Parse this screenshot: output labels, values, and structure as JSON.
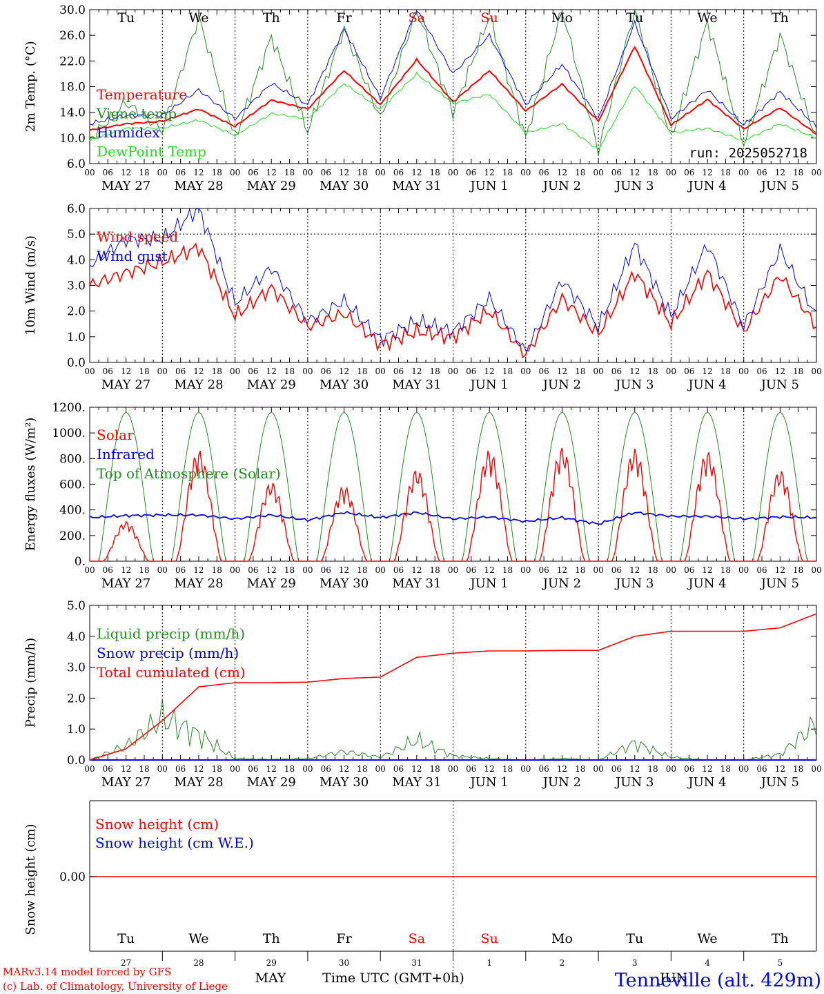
{
  "days": [
    "Tu",
    "We",
    "Th",
    "Fr",
    "Sa",
    "Su",
    "Mo",
    "Tu",
    "We",
    "Th"
  ],
  "weekend_days": [
    4,
    5
  ],
  "date_labels": [
    "MAY 27",
    "MAY 28",
    "MAY 29",
    "MAY 30",
    "MAY 31",
    "JUN  1",
    "JUN  2",
    "JUN  3",
    "JUN  4",
    "JUN  5"
  ],
  "hour_ticks": [
    "00",
    "06",
    "12",
    "18"
  ],
  "run_label": "run: 2025052718",
  "footer": {
    "model": "MARv3.14 model forced by GFS",
    "lab": "(c) Lab. of Climatology, University of Liege",
    "month": "MAY",
    "xlabel": "Time UTC (GMT+0h)",
    "station": "Tenneville (alt. 429m)",
    "month2": "JUN",
    "day_numbers": [
      "27",
      "28",
      "29",
      "30",
      "31",
      "1",
      "2",
      "3",
      "4",
      "5"
    ]
  },
  "colors": {
    "red": "#ff0000",
    "green": "#228b22",
    "blue": "#0000ff",
    "lime": "#22dd22",
    "weekend": "#ff0000"
  },
  "chart_data": [
    {
      "type": "line",
      "ylabel": "2m Temp. (°C)",
      "ylim": [
        6,
        30
      ],
      "yticks": [
        "6.0",
        "10.0",
        "14.0",
        "18.0",
        "22.0",
        "26.0",
        "30.0"
      ],
      "x_days": [
        0,
        0.5,
        1,
        1.5,
        2,
        2.5,
        3,
        3.5,
        4,
        4.5,
        5,
        5.5,
        6,
        6.5,
        7,
        7.5,
        8,
        8.5,
        9,
        9.5,
        10
      ],
      "series": [
        {
          "name": "Temperature",
          "color": "red",
          "values": [
            11.2,
            12.2,
            12.6,
            14.5,
            11.8,
            15.9,
            14.5,
            20.5,
            15.2,
            22.2,
            15.6,
            20.5,
            14.2,
            18.4,
            12.6,
            24.3,
            12.0,
            16.0,
            11.4,
            14.7,
            10.6
          ]
        },
        {
          "name": "Vigne temp",
          "color": "green",
          "values": [
            9.8,
            15.5,
            11.2,
            28.8,
            10.0,
            25.8,
            11.0,
            27.0,
            13.0,
            30.0,
            14.0,
            29.0,
            10.0,
            30.0,
            8.0,
            30.0,
            10.0,
            28.0,
            9.0,
            26.0,
            10.0
          ]
        },
        {
          "name": "Humidex",
          "color": "blue",
          "values": [
            12.2,
            13.5,
            13.5,
            17.5,
            13.0,
            18.5,
            15.2,
            27.0,
            16.2,
            30.0,
            20.0,
            26.0,
            15.2,
            21.5,
            13.0,
            28.0,
            13.0,
            17.5,
            12.0,
            17.2,
            11.8
          ]
        },
        {
          "name": "DewPoint Temp",
          "color": "lime",
          "values": [
            9.6,
            11.5,
            11.5,
            12.8,
            10.4,
            13.8,
            13.0,
            18.5,
            14.5,
            20.0,
            15.4,
            16.8,
            10.8,
            12.2,
            8.2,
            18.2,
            10.8,
            11.5,
            9.6,
            12.2,
            10.0
          ]
        }
      ]
    },
    {
      "type": "line",
      "ylabel": "10m Wind (m/s)",
      "ylim": [
        0,
        6
      ],
      "yticks": [
        "0.0",
        "1.0",
        "2.0",
        "3.0",
        "4.0",
        "5.0",
        "6.0"
      ],
      "x_days": [
        0,
        0.5,
        1,
        1.5,
        2,
        2.5,
        3,
        3.5,
        4,
        4.5,
        5,
        5.5,
        6,
        6.5,
        7,
        7.5,
        8,
        8.5,
        9,
        9.5,
        10
      ],
      "series": [
        {
          "name": "Wind speed",
          "color": "red",
          "values": [
            3.0,
            3.5,
            3.9,
            4.5,
            1.8,
            2.9,
            1.4,
            1.9,
            0.7,
            1.2,
            1.0,
            2.0,
            0.3,
            2.5,
            1.1,
            3.5,
            1.5,
            3.5,
            1.2,
            3.4,
            1.4
          ]
        },
        {
          "name": "Wind gust",
          "color": "blue",
          "values": [
            3.8,
            4.8,
            4.8,
            6.0,
            2.3,
            3.7,
            1.6,
            2.4,
            0.9,
            1.6,
            1.2,
            2.5,
            0.4,
            3.2,
            1.4,
            4.6,
            1.8,
            4.6,
            1.4,
            4.4,
            1.8
          ]
        }
      ]
    },
    {
      "type": "line",
      "ylabel": "Energy fluxes (W/m²)",
      "ylim": [
        0,
        1200
      ],
      "yticks": [
        "0.",
        "200.",
        "400.",
        "600.",
        "800.",
        "1000.",
        "1200."
      ],
      "x_days": [
        0,
        0.5,
        1,
        1.5,
        2,
        2.5,
        3,
        3.5,
        4,
        4.5,
        5,
        5.5,
        6,
        6.5,
        7,
        7.5,
        8,
        8.5,
        9,
        9.5,
        10
      ],
      "toa_peak": 1160,
      "solar_day_peaks": [
        310,
        870,
        620,
        590,
        720,
        870,
        890,
        880,
        860,
        710
      ],
      "series": [
        {
          "name": "Solar",
          "color": "red"
        },
        {
          "name": "Infrared",
          "color": "blue",
          "values": [
            340,
            355,
            360,
            360,
            330,
            360,
            320,
            380,
            340,
            380,
            330,
            345,
            310,
            340,
            290,
            380,
            350,
            350,
            330,
            345,
            340
          ]
        },
        {
          "name": "Top of Atmosphere (Solar)",
          "color": "green"
        }
      ]
    },
    {
      "type": "line",
      "ylabel": "Precip (mm/h)",
      "ylim": [
        0,
        5.5
      ],
      "yticks": [
        "0.0",
        "1.0",
        "2.0",
        "3.0",
        "4.0",
        "5.0"
      ],
      "x_days": [
        0,
        0.5,
        1,
        1.5,
        2,
        2.5,
        3,
        3.5,
        4,
        4.5,
        5,
        5.5,
        6,
        6.5,
        7,
        7.5,
        8,
        8.5,
        9,
        9.5,
        10
      ],
      "series": [
        {
          "name": "Liquid precip (mm/h)",
          "color": "green",
          "values": [
            0,
            0.5,
            1.5,
            0.9,
            0.05,
            0.02,
            0.05,
            0.3,
            0.1,
            0.7,
            0.15,
            0.05,
            0,
            0.05,
            0,
            0.6,
            0.1,
            0,
            0,
            0.2,
            1.3
          ]
        },
        {
          "name": "Snow precip (mm/h)",
          "color": "blue",
          "values": [
            0,
            0,
            0,
            0,
            0,
            0,
            0,
            0,
            0,
            0,
            0,
            0,
            0,
            0,
            0,
            0,
            0,
            0,
            0,
            0,
            0
          ]
        },
        {
          "name": "Total cumulated (cm)",
          "color": "red",
          "values": [
            0,
            0.4,
            1.4,
            2.6,
            2.75,
            2.75,
            2.77,
            2.9,
            2.95,
            3.65,
            3.8,
            3.88,
            3.88,
            3.9,
            3.9,
            4.4,
            4.58,
            4.58,
            4.58,
            4.7,
            5.2
          ]
        }
      ]
    },
    {
      "type": "line",
      "ylabel": "Snow height (cm)",
      "ytick": "0.00",
      "series": [
        {
          "name": "Snow height (cm)",
          "color": "red",
          "values": [
            0,
            0
          ]
        },
        {
          "name": "Snow height (cm W.E.)",
          "color": "blue"
        }
      ]
    }
  ]
}
